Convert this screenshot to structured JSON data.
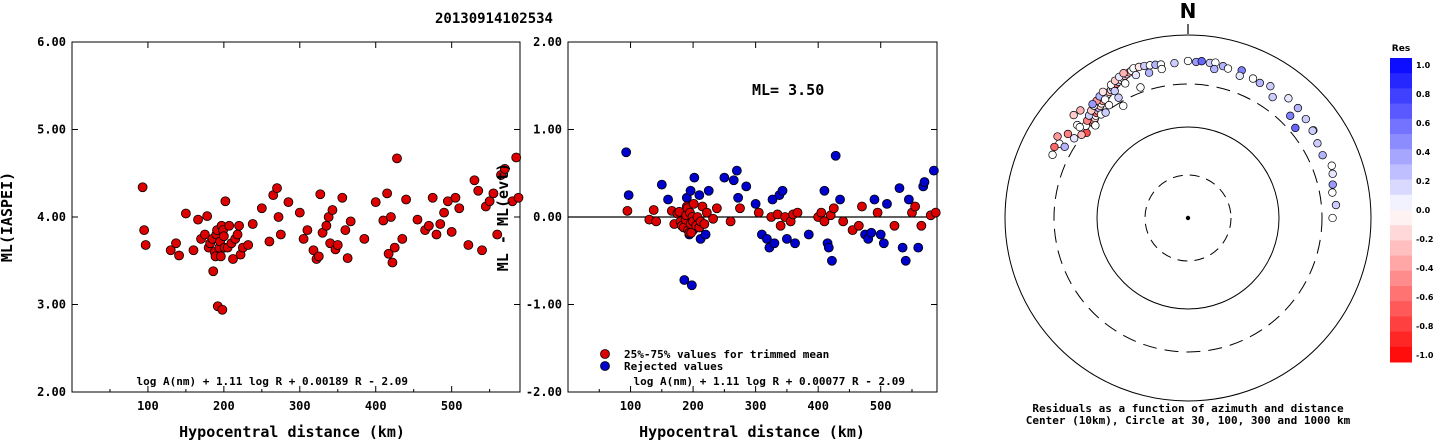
{
  "title": "20130914102534",
  "chart_data": [
    {
      "type": "scatter",
      "ylabel": "ML(IASPEI)",
      "xlabel": "Hypocentral distance (km)",
      "xlim": [
        0,
        590
      ],
      "ylim": [
        2.0,
        6.0
      ],
      "xticks": [
        "100",
        "200",
        "300",
        "400",
        "500"
      ],
      "yticks": [
        "2.00",
        "3.00",
        "4.00",
        "5.00",
        "6.00"
      ],
      "formula": "log A(nm) + 1.11 log R + 0.00189 R - 2.09",
      "marker_color": "#dd0000",
      "points": [
        [
          93,
          4.34
        ],
        [
          95,
          3.85
        ],
        [
          97,
          3.68
        ],
        [
          130,
          3.62
        ],
        [
          137,
          3.7
        ],
        [
          141,
          3.56
        ],
        [
          150,
          4.04
        ],
        [
          160,
          3.62
        ],
        [
          166,
          3.97
        ],
        [
          170,
          3.75
        ],
        [
          175,
          3.8
        ],
        [
          178,
          4.01
        ],
        [
          180,
          3.65
        ],
        [
          182,
          3.7
        ],
        [
          185,
          3.75
        ],
        [
          186,
          3.38
        ],
        [
          188,
          3.6
        ],
        [
          189,
          3.55
        ],
        [
          190,
          3.8
        ],
        [
          191,
          3.85
        ],
        [
          192,
          2.98
        ],
        [
          194,
          3.65
        ],
        [
          195,
          3.72
        ],
        [
          196,
          3.55
        ],
        [
          197,
          3.9
        ],
        [
          198,
          2.94
        ],
        [
          199,
          3.85
        ],
        [
          200,
          3.78
        ],
        [
          201,
          3.65
        ],
        [
          202,
          4.18
        ],
        [
          205,
          3.65
        ],
        [
          207,
          3.9
        ],
        [
          210,
          3.7
        ],
        [
          212,
          3.52
        ],
        [
          215,
          3.75
        ],
        [
          218,
          3.8
        ],
        [
          220,
          3.9
        ],
        [
          222,
          3.57
        ],
        [
          225,
          3.65
        ],
        [
          232,
          3.68
        ],
        [
          238,
          3.92
        ],
        [
          250,
          4.1
        ],
        [
          260,
          3.72
        ],
        [
          265,
          4.25
        ],
        [
          270,
          4.33
        ],
        [
          272,
          4.0
        ],
        [
          275,
          3.8
        ],
        [
          285,
          4.17
        ],
        [
          300,
          4.05
        ],
        [
          305,
          3.75
        ],
        [
          310,
          3.85
        ],
        [
          318,
          3.62
        ],
        [
          322,
          3.52
        ],
        [
          325,
          3.55
        ],
        [
          327,
          4.26
        ],
        [
          330,
          3.82
        ],
        [
          335,
          3.9
        ],
        [
          338,
          4.0
        ],
        [
          340,
          3.7
        ],
        [
          343,
          4.08
        ],
        [
          347,
          3.63
        ],
        [
          350,
          3.68
        ],
        [
          356,
          4.22
        ],
        [
          360,
          3.85
        ],
        [
          363,
          3.53
        ],
        [
          367,
          3.95
        ],
        [
          385,
          3.75
        ],
        [
          400,
          4.17
        ],
        [
          410,
          3.96
        ],
        [
          415,
          4.27
        ],
        [
          417,
          3.58
        ],
        [
          420,
          4.0
        ],
        [
          422,
          3.48
        ],
        [
          425,
          3.65
        ],
        [
          428,
          4.67
        ],
        [
          435,
          3.75
        ],
        [
          440,
          4.2
        ],
        [
          455,
          3.97
        ],
        [
          465,
          3.85
        ],
        [
          470,
          3.9
        ],
        [
          475,
          4.22
        ],
        [
          480,
          3.8
        ],
        [
          485,
          3.92
        ],
        [
          490,
          4.05
        ],
        [
          495,
          4.18
        ],
        [
          500,
          3.83
        ],
        [
          505,
          4.22
        ],
        [
          510,
          4.1
        ],
        [
          522,
          3.68
        ],
        [
          530,
          4.42
        ],
        [
          535,
          4.3
        ],
        [
          540,
          3.62
        ],
        [
          545,
          4.12
        ],
        [
          550,
          4.18
        ],
        [
          555,
          4.27
        ],
        [
          560,
          3.8
        ],
        [
          565,
          4.48
        ],
        [
          570,
          4.55
        ],
        [
          580,
          4.18
        ],
        [
          585,
          4.68
        ],
        [
          588,
          4.22
        ]
      ]
    },
    {
      "type": "scatter",
      "ylabel": "ML - ML(evt)",
      "xlabel": "Hypocentral distance (km)",
      "xlim": [
        0,
        590
      ],
      "ylim": [
        -2.0,
        2.0
      ],
      "xticks": [
        "100",
        "200",
        "300",
        "400",
        "500"
      ],
      "yticks": [
        "-2.00",
        "-1.00",
        "0.00",
        "1.00",
        "2.00"
      ],
      "annotation": "ML= 3.50",
      "formula": "log A(nm) + 1.11 log R + 0.00077 R - 2.09",
      "legend": [
        "25%-75% values for trimmed mean",
        "Rejected values"
      ],
      "legend_colors": [
        "#dd0000",
        "#0000cc"
      ],
      "points_trimmed": [
        [
          95,
          0.07
        ],
        [
          130,
          -0.03
        ],
        [
          137,
          0.08
        ],
        [
          141,
          -0.05
        ],
        [
          166,
          0.07
        ],
        [
          170,
          -0.08
        ],
        [
          175,
          0.04
        ],
        [
          178,
          0.06
        ],
        [
          180,
          -0.05
        ],
        [
          182,
          -0.1
        ],
        [
          185,
          -0.12
        ],
        [
          188,
          -0.03
        ],
        [
          189,
          0.02
        ],
        [
          190,
          0.12
        ],
        [
          191,
          0.1
        ],
        [
          192,
          -0.15
        ],
        [
          194,
          -0.18
        ],
        [
          195,
          0.05
        ],
        [
          196,
          -0.08
        ],
        [
          197,
          -0.18
        ],
        [
          199,
          0.0
        ],
        [
          200,
          -0.05
        ],
        [
          201,
          0.15
        ],
        [
          205,
          -0.1
        ],
        [
          207,
          0.0
        ],
        [
          210,
          -0.12
        ],
        [
          212,
          -0.05
        ],
        [
          215,
          0.12
        ],
        [
          218,
          -0.08
        ],
        [
          222,
          0.05
        ],
        [
          232,
          -0.02
        ],
        [
          238,
          0.1
        ],
        [
          260,
          -0.05
        ],
        [
          275,
          0.1
        ],
        [
          305,
          0.05
        ],
        [
          325,
          0.0
        ],
        [
          335,
          0.03
        ],
        [
          340,
          -0.1
        ],
        [
          347,
          0.0
        ],
        [
          356,
          -0.05
        ],
        [
          360,
          0.03
        ],
        [
          367,
          0.05
        ],
        [
          400,
          0.0
        ],
        [
          405,
          0.05
        ],
        [
          410,
          -0.05
        ],
        [
          420,
          0.02
        ],
        [
          425,
          0.1
        ],
        [
          440,
          -0.05
        ],
        [
          455,
          -0.15
        ],
        [
          465,
          -0.1
        ],
        [
          470,
          0.12
        ],
        [
          495,
          0.05
        ],
        [
          522,
          -0.1
        ],
        [
          550,
          0.05
        ],
        [
          555,
          0.12
        ],
        [
          565,
          -0.1
        ],
        [
          580,
          0.02
        ],
        [
          588,
          0.05
        ]
      ],
      "points_rejected": [
        [
          93,
          0.74
        ],
        [
          97,
          0.25
        ],
        [
          150,
          0.37
        ],
        [
          160,
          0.2
        ],
        [
          186,
          -0.72
        ],
        [
          188,
          0.0
        ],
        [
          189,
          -0.1
        ],
        [
          190,
          0.22
        ],
        [
          194,
          -0.2
        ],
        [
          196,
          0.3
        ],
        [
          198,
          -0.78
        ],
        [
          200,
          -0.15
        ],
        [
          202,
          0.45
        ],
        [
          210,
          0.25
        ],
        [
          212,
          -0.25
        ],
        [
          220,
          -0.2
        ],
        [
          225,
          0.3
        ],
        [
          250,
          0.45
        ],
        [
          265,
          0.42
        ],
        [
          270,
          0.53
        ],
        [
          272,
          0.22
        ],
        [
          285,
          0.35
        ],
        [
          300,
          0.15
        ],
        [
          310,
          -0.2
        ],
        [
          318,
          -0.25
        ],
        [
          322,
          -0.35
        ],
        [
          327,
          0.2
        ],
        [
          330,
          -0.3
        ],
        [
          338,
          0.25
        ],
        [
          343,
          0.3
        ],
        [
          350,
          -0.25
        ],
        [
          363,
          -0.3
        ],
        [
          385,
          -0.2
        ],
        [
          410,
          0.3
        ],
        [
          415,
          -0.3
        ],
        [
          417,
          -0.35
        ],
        [
          422,
          -0.5
        ],
        [
          428,
          0.7
        ],
        [
          435,
          0.2
        ],
        [
          475,
          -0.2
        ],
        [
          480,
          -0.25
        ],
        [
          485,
          -0.18
        ],
        [
          490,
          0.2
        ],
        [
          500,
          -0.2
        ],
        [
          505,
          -0.3
        ],
        [
          510,
          0.15
        ],
        [
          530,
          0.33
        ],
        [
          535,
          -0.35
        ],
        [
          540,
          -0.5
        ],
        [
          545,
          0.2
        ],
        [
          560,
          -0.35
        ],
        [
          568,
          0.35
        ],
        [
          570,
          0.4
        ],
        [
          585,
          0.53
        ]
      ]
    },
    {
      "type": "scatter",
      "subtype": "polar",
      "north_label": "N",
      "caption_line1": "Residuals as a function of azimuth and distance",
      "caption_line2": "Center (10km), Circle at 30, 100, 300 and 1000 km",
      "colorbar_title": "Res",
      "colorbar_ticks": [
        "1.0",
        "0.8",
        "0.6",
        "0.4",
        "0.2",
        "0.0",
        "-0.2",
        "-0.4",
        "-0.6",
        "-0.8",
        "-1.0"
      ],
      "points": [
        [
          -45,
          290,
          -0.5
        ],
        [
          -44,
          300,
          -0.4
        ],
        [
          -43,
          310,
          -0.2
        ],
        [
          -42,
          320,
          0.0
        ],
        [
          -41,
          330,
          -0.6
        ],
        [
          -40,
          340,
          -0.3
        ],
        [
          -39,
          350,
          0.3
        ],
        [
          -38,
          360,
          -0.2
        ],
        [
          -37,
          370,
          0.0
        ],
        [
          -36,
          380,
          -0.4
        ],
        [
          -35,
          390,
          0.2
        ],
        [
          -34,
          400,
          -0.5
        ],
        [
          -33,
          410,
          0.0
        ],
        [
          -32,
          420,
          -0.3
        ],
        [
          -31,
          430,
          0.1
        ],
        [
          -30,
          440,
          -0.2
        ],
        [
          -29,
          450,
          0.0
        ],
        [
          -28,
          460,
          -0.6
        ],
        [
          -27,
          470,
          0.2
        ],
        [
          -26,
          480,
          -0.1
        ],
        [
          -25,
          490,
          0.0
        ],
        [
          -24,
          500,
          -0.3
        ],
        [
          -23,
          510,
          0.1
        ],
        [
          -22,
          520,
          -0.4
        ],
        [
          -21,
          530,
          0.0
        ],
        [
          -50,
          280,
          -0.7
        ],
        [
          -52,
          300,
          -0.3
        ],
        [
          -48,
          320,
          0.0
        ],
        [
          -46,
          340,
          -0.5
        ],
        [
          -44,
          360,
          0.2
        ],
        [
          -42,
          380,
          -0.2
        ],
        [
          -40,
          400,
          0.0
        ],
        [
          -38,
          420,
          -0.4
        ],
        [
          -36,
          440,
          0.3
        ],
        [
          -34,
          460,
          -0.1
        ],
        [
          -30,
          480,
          0.0
        ],
        [
          -28,
          500,
          -0.2
        ],
        [
          -26,
          520,
          0.1
        ],
        [
          -24,
          540,
          -0.3
        ],
        [
          -20,
          550,
          0.0
        ],
        [
          -18,
          545,
          -0.1
        ],
        [
          -16,
          535,
          0.2
        ],
        [
          -14,
          525,
          0.0
        ],
        [
          -12,
          515,
          0.3
        ],
        [
          -10,
          505,
          0.0
        ],
        [
          -5,
          500,
          0.2
        ],
        [
          0,
          520,
          0.0
        ],
        [
          3,
          510,
          0.4
        ],
        [
          5,
          525,
          0.6
        ],
        [
          8,
          515,
          0.2
        ],
        [
          10,
          530,
          0.0
        ],
        [
          13,
          505,
          0.3
        ],
        [
          15,
          490,
          0.0
        ],
        [
          20,
          520,
          0.5
        ],
        [
          25,
          480,
          0.0
        ],
        [
          28,
          470,
          0.3
        ],
        [
          32,
          500,
          0.2
        ],
        [
          40,
          510,
          0.1
        ],
        [
          45,
          500,
          0.3
        ],
        [
          50,
          480,
          0.2
        ],
        [
          55,
          470,
          0.0
        ],
        [
          60,
          430,
          0.2
        ],
        [
          65,
          420,
          0.3
        ],
        [
          70,
          470,
          0.0
        ],
        [
          73,
          450,
          0.1
        ],
        [
          77,
          420,
          0.4
        ],
        [
          80,
          400,
          0.0
        ],
        [
          85,
          420,
          0.2
        ],
        [
          90,
          380,
          0.0
        ],
        [
          -10,
          450,
          0.0
        ],
        [
          -15,
          440,
          0.3
        ],
        [
          -20,
          460,
          0.1
        ],
        [
          -25,
          420,
          0.0
        ],
        [
          -30,
          400,
          0.2
        ],
        [
          -35,
          380,
          0.0
        ],
        [
          -40,
          420,
          0.4
        ],
        [
          -45,
          460,
          -0.3
        ],
        [
          -50,
          380,
          0.0
        ],
        [
          -55,
          400,
          -0.5
        ],
        [
          -60,
          420,
          0.0
        ],
        [
          -55,
          330,
          0.1
        ],
        [
          -40,
          300,
          0.0
        ],
        [
          -30,
          330,
          0.2
        ],
        [
          -35,
          320,
          0.0
        ],
        [
          -62,
          450,
          -0.6
        ],
        [
          -58,
          480,
          -0.4
        ],
        [
          -48,
          480,
          -0.2
        ],
        [
          -65,
          430,
          0.0
        ],
        [
          -60,
          360,
          0.3
        ],
        [
          -50,
          350,
          0.0
        ],
        [
          -45,
          270,
          0.0
        ],
        [
          -38,
          290,
          0.2
        ],
        [
          -30,
          260,
          0.0
        ],
        [
          -20,
          330,
          0.0
        ],
        [
          10,
          450,
          0.3
        ],
        [
          20,
          450,
          0.1
        ],
        [
          35,
          410,
          0.2
        ],
        [
          45,
          380,
          0.5
        ],
        [
          50,
          340,
          0.6
        ],
        [
          55,
          460,
          0.2
        ]
      ]
    }
  ]
}
